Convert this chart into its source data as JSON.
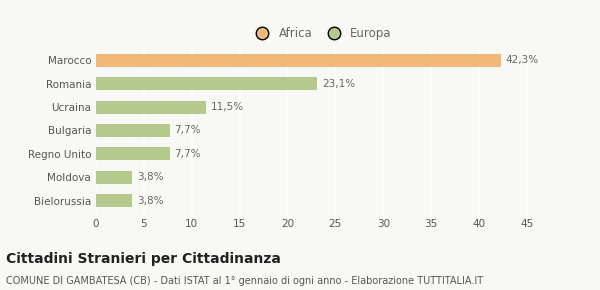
{
  "categories": [
    "Bielorussia",
    "Moldova",
    "Regno Unito",
    "Bulgaria",
    "Ucraina",
    "Romania",
    "Marocco"
  ],
  "values": [
    3.8,
    3.8,
    7.7,
    7.7,
    11.5,
    23.1,
    42.3
  ],
  "labels": [
    "3,8%",
    "3,8%",
    "7,7%",
    "7,7%",
    "11,5%",
    "23,1%",
    "42,3%"
  ],
  "colors": [
    "#b5c98e",
    "#b5c98e",
    "#b5c98e",
    "#b5c98e",
    "#b5c98e",
    "#b5c98e",
    "#f0b97a"
  ],
  "legend": [
    {
      "label": "Africa",
      "color": "#f0b97a"
    },
    {
      "label": "Europa",
      "color": "#b5c98e"
    }
  ],
  "xlim": [
    0,
    47
  ],
  "xticks": [
    0,
    5,
    10,
    15,
    20,
    25,
    30,
    35,
    40,
    45
  ],
  "title": "Cittadini Stranieri per Cittadinanza",
  "subtitle": "COMUNE DI GAMBATESA (CB) - Dati ISTAT al 1° gennaio di ogni anno - Elaborazione TUTTITALIA.IT",
  "background_color": "#f8f8f5",
  "bar_height": 0.55,
  "label_fontsize": 7.5,
  "tick_fontsize": 7.5,
  "title_fontsize": 10,
  "subtitle_fontsize": 7
}
